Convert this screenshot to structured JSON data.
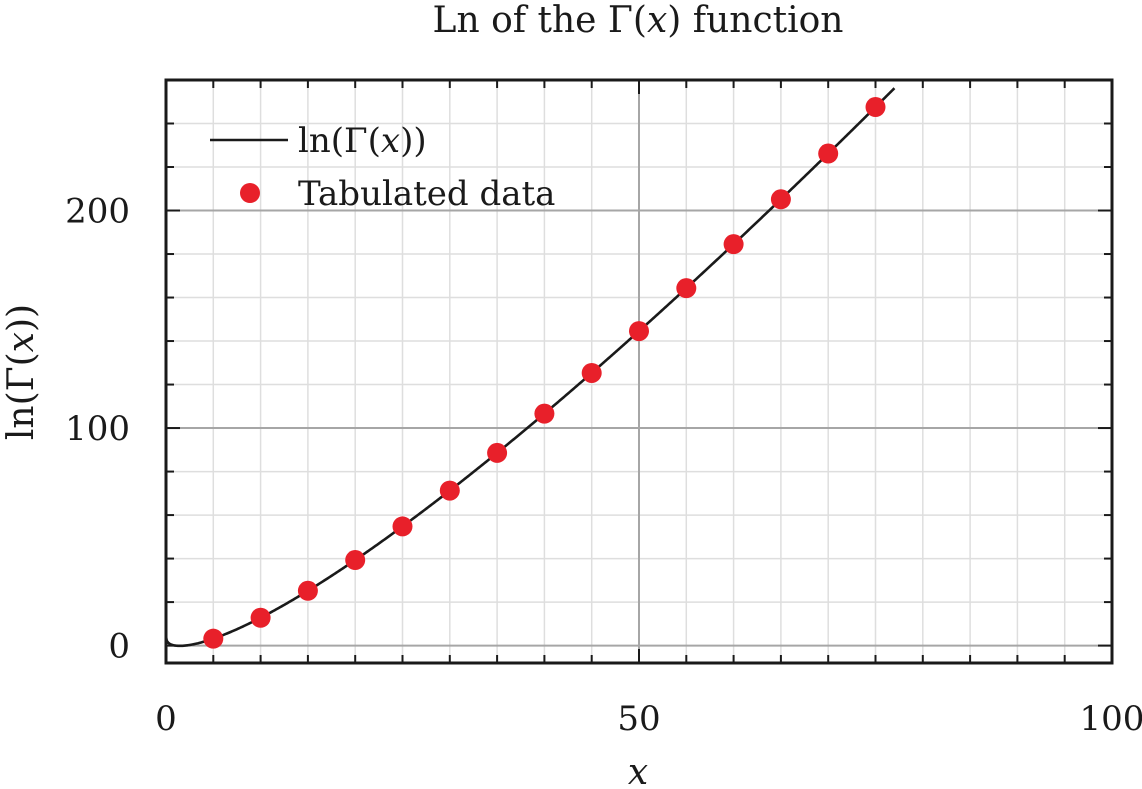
{
  "chart_data": {
    "type": "line",
    "title": "Ln of the Γ(x) function",
    "title_parts": {
      "pre": "Ln of the Γ(",
      "var": "x",
      "post": ") function"
    },
    "xlabel": "x",
    "ylabel": "ln(Γ(x))",
    "ylabel_parts": {
      "pre": "ln(Γ(",
      "var": "x",
      "post": "))"
    },
    "xlim": [
      0,
      100
    ],
    "ylim": [
      -8,
      260
    ],
    "x_ticks": [
      0,
      50,
      100
    ],
    "y_ticks": [
      0,
      100,
      200
    ],
    "x_minor_step": 5,
    "y_minor_step": 20,
    "grid": true,
    "legend_position": "top-left",
    "series": [
      {
        "name": "ln(Γ(x))",
        "name_parts": {
          "pre": "ln(Γ(",
          "var": "x",
          "post": "))"
        },
        "kind": "line",
        "function": "lngamma",
        "x_range": [
          0.013,
          77
        ],
        "color": "#1a1a1a"
      },
      {
        "name": "Tabulated data",
        "kind": "scatter",
        "color": "#e8202a",
        "x": [
          5,
          10,
          15,
          20,
          25,
          30,
          35,
          40,
          45,
          50,
          55,
          60,
          65,
          70,
          75
        ],
        "y": [
          3.18,
          12.8,
          25.19,
          39.34,
          54.78,
          71.26,
          88.58,
          106.63,
          125.32,
          144.57,
          164.32,
          184.53,
          205.17,
          226.19,
          247.58
        ]
      }
    ]
  }
}
